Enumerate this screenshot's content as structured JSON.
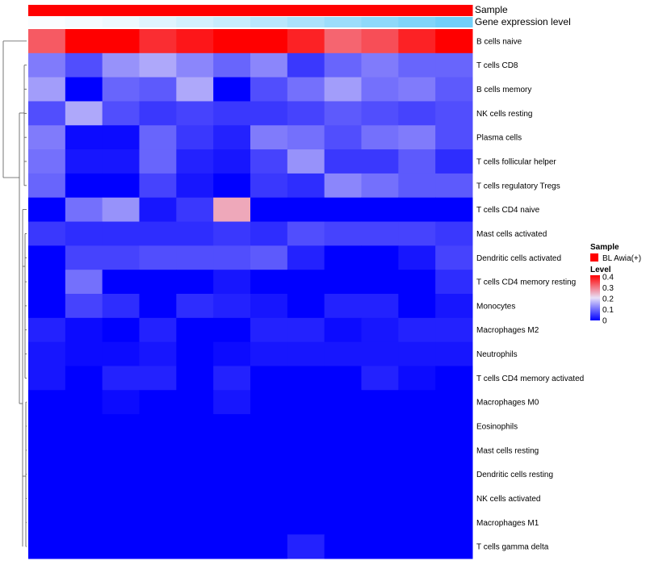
{
  "chart_data": {
    "type": "heatmap",
    "title": "",
    "annotation_labels": {
      "sample": "Sample",
      "gene_expression": "Gene expression level"
    },
    "sample_colors": {
      "BL Awia(+)": "#ff0000"
    },
    "gene_expression_gradient": [
      "#ffffff",
      "#4fc3f7"
    ],
    "rows": [
      "B cells naive",
      "T cells CD8",
      "B cells memory",
      "NK cells resting",
      "Plasma cells",
      "T cells follicular helper",
      "T cells regulatory  Tregs",
      "T cells CD4 naive",
      "Mast cells activated",
      "Dendritic cells activated",
      "T cells CD4 memory resting",
      "Monocytes",
      "Macrophages M2",
      "Neutrophils",
      "T cells CD4 memory activated",
      "Macrophages M0",
      "Eosinophils",
      "Mast cells resting",
      "Dendritic cells resting",
      "NK cells activated",
      "Macrophages M1",
      "T cells gamma delta"
    ],
    "n_columns": 12,
    "values": [
      [
        0.32,
        0.42,
        0.42,
        0.36,
        0.38,
        0.4,
        0.4,
        0.37,
        0.31,
        0.33,
        0.37,
        0.42
      ],
      [
        0.11,
        0.07,
        0.13,
        0.15,
        0.12,
        0.09,
        0.12,
        0.05,
        0.09,
        0.11,
        0.09,
        0.09
      ],
      [
        0.14,
        0.0,
        0.09,
        0.08,
        0.15,
        0.0,
        0.07,
        0.1,
        0.14,
        0.1,
        0.11,
        0.08
      ],
      [
        0.07,
        0.15,
        0.07,
        0.05,
        0.06,
        0.05,
        0.05,
        0.06,
        0.08,
        0.07,
        0.06,
        0.07
      ],
      [
        0.11,
        0.01,
        0.01,
        0.09,
        0.05,
        0.03,
        0.11,
        0.1,
        0.07,
        0.1,
        0.11,
        0.07
      ],
      [
        0.1,
        0.02,
        0.02,
        0.09,
        0.03,
        0.02,
        0.06,
        0.13,
        0.05,
        0.05,
        0.08,
        0.04
      ],
      [
        0.09,
        0.0,
        0.0,
        0.06,
        0.02,
        0.0,
        0.05,
        0.04,
        0.12,
        0.1,
        0.08,
        0.08
      ],
      [
        0.0,
        0.1,
        0.13,
        0.02,
        0.05,
        0.25,
        0.0,
        0.0,
        0.0,
        0.0,
        0.0,
        0.0
      ],
      [
        0.05,
        0.04,
        0.04,
        0.04,
        0.04,
        0.05,
        0.04,
        0.07,
        0.06,
        0.06,
        0.06,
        0.05
      ],
      [
        0.0,
        0.06,
        0.06,
        0.07,
        0.07,
        0.07,
        0.08,
        0.03,
        0.0,
        0.0,
        0.02,
        0.06
      ],
      [
        0.0,
        0.1,
        0.0,
        0.0,
        0.0,
        0.02,
        0.0,
        0.0,
        0.0,
        0.0,
        0.0,
        0.04
      ],
      [
        0.0,
        0.06,
        0.04,
        0.0,
        0.04,
        0.03,
        0.02,
        0.0,
        0.03,
        0.03,
        0.0,
        0.02
      ],
      [
        0.03,
        0.01,
        0.0,
        0.03,
        0.0,
        0.0,
        0.03,
        0.03,
        0.01,
        0.02,
        0.03,
        0.03
      ],
      [
        0.02,
        0.01,
        0.01,
        0.02,
        0.0,
        0.01,
        0.02,
        0.02,
        0.02,
        0.02,
        0.02,
        0.02
      ],
      [
        0.02,
        0.0,
        0.03,
        0.03,
        0.0,
        0.03,
        0.0,
        0.0,
        0.0,
        0.03,
        0.01,
        0.0
      ],
      [
        0.0,
        0.0,
        0.01,
        0.0,
        0.0,
        0.02,
        0.0,
        0.0,
        0.0,
        0.0,
        0.0,
        0.0
      ],
      [
        0.0,
        0.0,
        0.0,
        0.0,
        0.0,
        0.0,
        0.0,
        0.0,
        0.0,
        0.0,
        0.0,
        0.0
      ],
      [
        0.0,
        0.0,
        0.0,
        0.0,
        0.0,
        0.0,
        0.0,
        0.0,
        0.0,
        0.0,
        0.0,
        0.0
      ],
      [
        0.0,
        0.0,
        0.0,
        0.0,
        0.0,
        0.0,
        0.0,
        0.0,
        0.0,
        0.0,
        0.0,
        0.0
      ],
      [
        0.0,
        0.0,
        0.0,
        0.0,
        0.0,
        0.0,
        0.0,
        0.0,
        0.0,
        0.0,
        0.0,
        0.0
      ],
      [
        0.0,
        0.0,
        0.0,
        0.0,
        0.0,
        0.0,
        0.0,
        0.0,
        0.0,
        0.0,
        0.0,
        0.0
      ],
      [
        0.0,
        0.0,
        0.0,
        0.0,
        0.0,
        0.0,
        0.0,
        0.03,
        0.0,
        0.0,
        0.0,
        0.0
      ]
    ],
    "gene_expression_levels": [
      0.03,
      0.06,
      0.1,
      0.18,
      0.25,
      0.32,
      0.4,
      0.48,
      0.56,
      0.64,
      0.72,
      0.8
    ],
    "color_scale": {
      "min": 0,
      "max": 0.4,
      "stops": [
        {
          "value": 0.0,
          "color": "#0000ff"
        },
        {
          "value": 0.2,
          "color": "#e8e0f8"
        },
        {
          "value": 0.4,
          "color": "#ff0000"
        }
      ]
    },
    "legend": {
      "sample_title": "Sample",
      "sample_entry": "BL Awia(+)",
      "level_title": "Level",
      "level_ticks": [
        "0.4",
        "0.3",
        "0.2",
        "0.1",
        "0"
      ],
      "placement": "right"
    }
  }
}
